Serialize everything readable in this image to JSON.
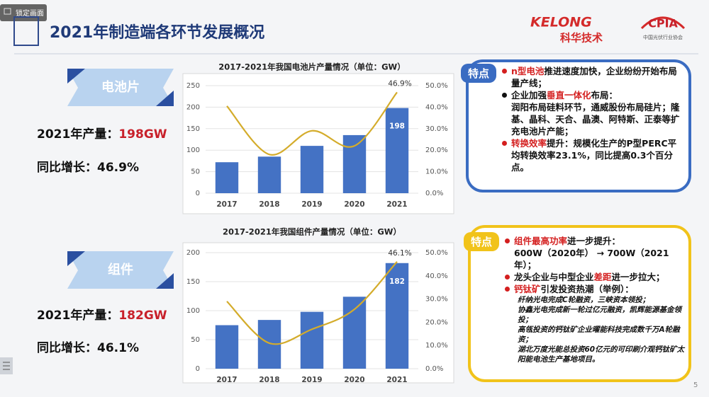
{
  "overlay": {
    "label": "锁定画面"
  },
  "header": {
    "title": "2021年制造端各环节发展概况",
    "logo_brand": "KELONG",
    "logo_brand_cn": "科华技术",
    "logo_org": "CPIA",
    "logo_org_cn": "中国光伏行业协会"
  },
  "sections": [
    {
      "name": "电池片",
      "output_label": "2021年产量：",
      "output_value": "198GW",
      "growth_label": "同比增长：",
      "growth_value": "46.9%",
      "tag": "特点",
      "bullets": [
        {
          "key": "n型电池",
          "after": "推进速度加快，企业纷纷开始布局量产线；"
        },
        {
          "before": "企业加强",
          "key": "垂直一体化",
          "after": "布局：",
          "notes": [
            "润阳布局硅料环节，通威股份布局硅片；隆基、晶科、天合、晶澳、阿特斯、正泰等扩充电池片产能；"
          ]
        },
        {
          "key": "转换效率",
          "after": "提升：规模化生产的P型PERC平均转换效率23.1%，同比提高0.3个百分点。"
        }
      ]
    },
    {
      "name": "组件",
      "output_label": "2021年产量：",
      "output_value": "182GW",
      "growth_label": "同比增长：",
      "growth_value": "46.1%",
      "tag": "特点",
      "bullets": [
        {
          "key": "组件最高功率",
          "after": "进一步提升：",
          "notes": [
            "600W（2020年） → 700W（2021年）；"
          ]
        },
        {
          "before": "龙头企业与中型企业",
          "key": "差距",
          "after": "进一步拉大；"
        },
        {
          "key": "钙钛矿",
          "after": "引发投资热潮（举例）：",
          "notes_italic": true,
          "notes": [
            "纤纳光电完成C轮融资，三峡资本领投；",
            "协鑫光电完成新一轮过亿元融资，凯辉能源基金领投；",
            "高瓴投资的钙钛矿企业曜能科技完成数千万A轮融资；",
            "湖北万度光能总投资60亿元的可印刷介观钙钛矿太阳能电池生产基地项目。"
          ]
        }
      ]
    }
  ],
  "page_number": "5",
  "chart_data": [
    {
      "type": "combo",
      "title": "2017-2021年我国电池片产量情况（单位：GW）",
      "categories": [
        "2017",
        "2018",
        "2019",
        "2020",
        "2021"
      ],
      "series": [
        {
          "type": "bar",
          "color": "#4472c4",
          "values": [
            72,
            85,
            110,
            135,
            198
          ],
          "value_labels": [
            null,
            null,
            null,
            null,
            "198"
          ]
        },
        {
          "type": "line",
          "axis": "y2",
          "color": "#d4ac2b",
          "values": [
            40.5,
            18,
            29,
            22,
            46.9
          ],
          "value_labels": [
            null,
            null,
            null,
            null,
            "46.9%"
          ]
        }
      ],
      "ylim": [
        0,
        250
      ],
      "yticks": [
        0,
        50,
        100,
        150,
        200,
        250
      ],
      "y2lim": [
        0,
        50
      ],
      "y2ticks": [
        {
          "value": 0,
          "label": "0.0%"
        },
        {
          "value": 10,
          "label": "10.0%"
        },
        {
          "value": 20,
          "label": "20.0%"
        },
        {
          "value": 30,
          "label": "30.0%"
        },
        {
          "value": 40,
          "label": "40.0%"
        },
        {
          "value": 50,
          "label": "50.0%"
        }
      ],
      "grid": true
    },
    {
      "type": "combo",
      "title": "2017-2021年我国组件产量情况（单位：GW）",
      "categories": [
        "2017",
        "2018",
        "2019",
        "2020",
        "2021"
      ],
      "series": [
        {
          "type": "bar",
          "color": "#4472c4",
          "values": [
            75,
            84,
            98,
            124,
            182
          ],
          "value_labels": [
            null,
            null,
            null,
            null,
            "182"
          ]
        },
        {
          "type": "line",
          "axis": "y2",
          "color": "#d4ac2b",
          "values": [
            29,
            11,
            17,
            25.6,
            46.1
          ],
          "value_labels": [
            null,
            null,
            null,
            null,
            "46.1%"
          ]
        }
      ],
      "ylim": [
        0,
        200
      ],
      "yticks": [
        0,
        50,
        100,
        150,
        200
      ],
      "y2lim": [
        0,
        50
      ],
      "y2ticks": [
        {
          "value": 0,
          "label": "0.0%"
        },
        {
          "value": 10,
          "label": "10.0%"
        },
        {
          "value": 20,
          "label": "20.0%"
        },
        {
          "value": 30,
          "label": "30.0%"
        },
        {
          "value": 40,
          "label": "40.0%"
        },
        {
          "value": 50,
          "label": "50.0%"
        }
      ],
      "grid": true
    }
  ]
}
